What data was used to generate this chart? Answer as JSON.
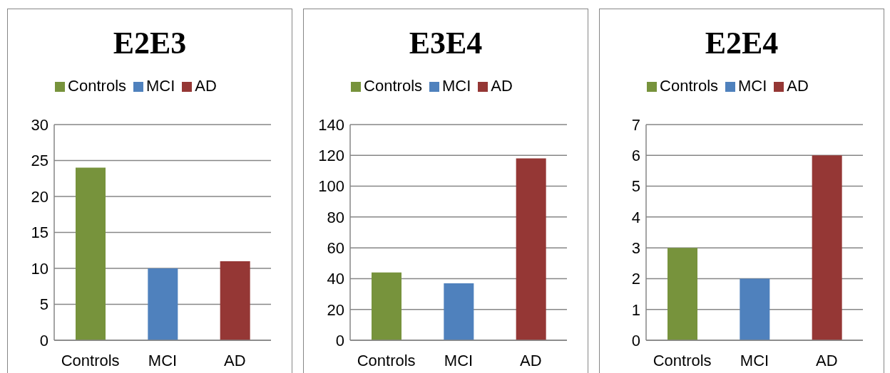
{
  "chart_data": [
    {
      "type": "bar",
      "title": "E2E3",
      "categories": [
        "Controls",
        "MCI",
        "AD"
      ],
      "stacked": true,
      "series": [
        {
          "name": "Controls",
          "color": "#77933c",
          "values": [
            24,
            null,
            null
          ]
        },
        {
          "name": "MCI",
          "color": "#4f81bd",
          "values": [
            null,
            10,
            null
          ]
        },
        {
          "name": "AD",
          "color": "#953735",
          "values": [
            null,
            null,
            11
          ]
        }
      ],
      "ylim": [
        0,
        30
      ],
      "yticks": [
        0,
        5,
        10,
        15,
        20,
        25,
        30
      ],
      "grid": "y",
      "legend": "top"
    },
    {
      "type": "bar",
      "title": "E3E4",
      "categories": [
        "Controls",
        "MCI",
        "AD"
      ],
      "stacked": true,
      "series": [
        {
          "name": "Controls",
          "color": "#77933c",
          "values": [
            44,
            null,
            null
          ]
        },
        {
          "name": "MCI",
          "color": "#4f81bd",
          "values": [
            null,
            37,
            null
          ]
        },
        {
          "name": "AD",
          "color": "#953735",
          "values": [
            null,
            null,
            118
          ]
        }
      ],
      "ylim": [
        0,
        140
      ],
      "yticks": [
        0,
        20,
        40,
        60,
        80,
        100,
        120,
        140
      ],
      "grid": "y",
      "legend": "top"
    },
    {
      "type": "bar",
      "title": "E2E4",
      "categories": [
        "Controls",
        "MCI",
        "AD"
      ],
      "stacked": true,
      "series": [
        {
          "name": "Controls",
          "color": "#77933c",
          "values": [
            3,
            null,
            null
          ]
        },
        {
          "name": "MCI",
          "color": "#4f81bd",
          "values": [
            null,
            2,
            null
          ]
        },
        {
          "name": "AD",
          "color": "#953735",
          "values": [
            null,
            null,
            6
          ]
        }
      ],
      "ylim": [
        0,
        7
      ],
      "yticks": [
        0,
        1,
        2,
        3,
        4,
        5,
        6,
        7
      ],
      "grid": "y",
      "legend": "top"
    }
  ]
}
